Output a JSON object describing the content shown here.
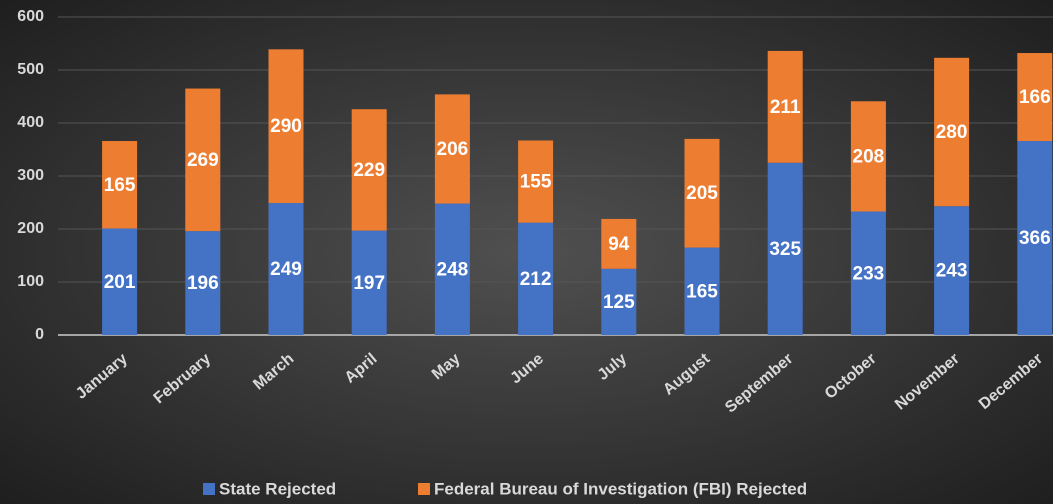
{
  "chart_data": {
    "type": "bar",
    "categories": [
      "January",
      "February",
      "March",
      "April",
      "May",
      "June",
      "July",
      "August",
      "September",
      "October",
      "November",
      "December"
    ],
    "series": [
      {
        "name": "State Rejected",
        "color": "#4472c4",
        "values": [
          201,
          196,
          249,
          197,
          248,
          212,
          125,
          165,
          325,
          233,
          243,
          366
        ]
      },
      {
        "name": "Federal Bureau of Investigation (FBI) Rejected",
        "color": "#ed7d31",
        "values": [
          165,
          269,
          290,
          229,
          206,
          155,
          94,
          205,
          211,
          208,
          280,
          166
        ]
      }
    ],
    "stacked": true,
    "ylim": [
      0,
      600
    ],
    "yticks": [
      0,
      100,
      200,
      300,
      400,
      500,
      600
    ],
    "grid": true,
    "legend": "bottom"
  }
}
